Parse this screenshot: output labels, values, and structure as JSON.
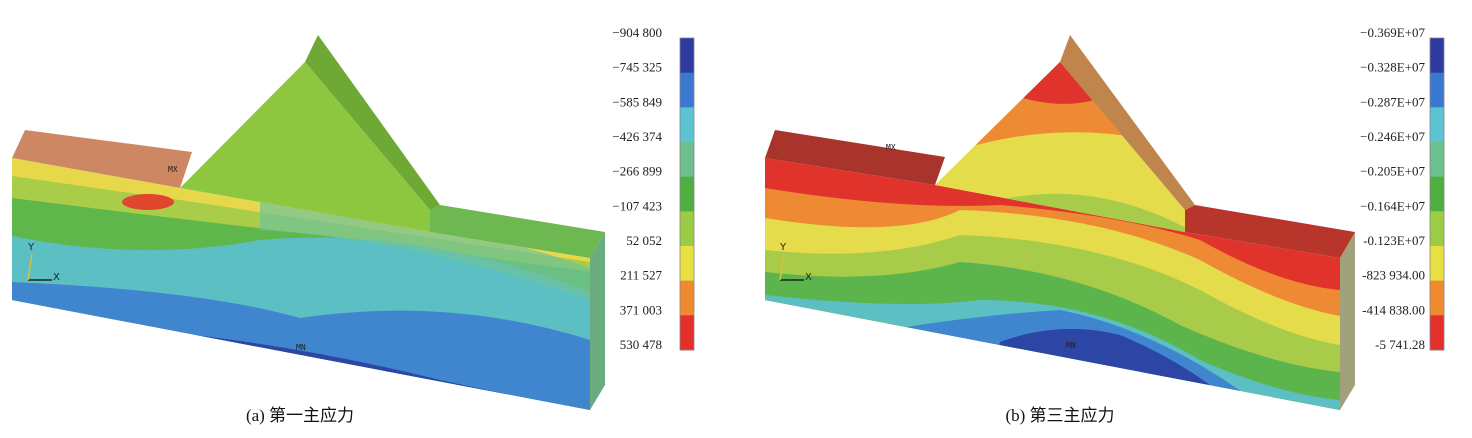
{
  "panels": [
    {
      "caption": "(a) 第一主应力",
      "legend": [
        "−904 800",
        "−745 325",
        "−585 849",
        "−426 374",
        "−266 899",
        "−107 423",
        "52 052",
        "211 527",
        "371 003",
        "530 478"
      ],
      "max_label": "MX",
      "min_label": "MN",
      "axis_y": "Y",
      "axis_x": "X"
    },
    {
      "caption": "(b) 第三主应力",
      "legend": [
        "−0.369E+07",
        "−0.328E+07",
        "−0.287E+07",
        "−0.246E+07",
        "−0.205E+07",
        "−0.164E+07",
        "-0.123E+07",
        "-823 934.00",
        "-414 838.00",
        "-5 741.28"
      ],
      "max_label": "MX",
      "min_label": "MN",
      "axis_y": "Y",
      "axis_x": "X"
    }
  ]
}
